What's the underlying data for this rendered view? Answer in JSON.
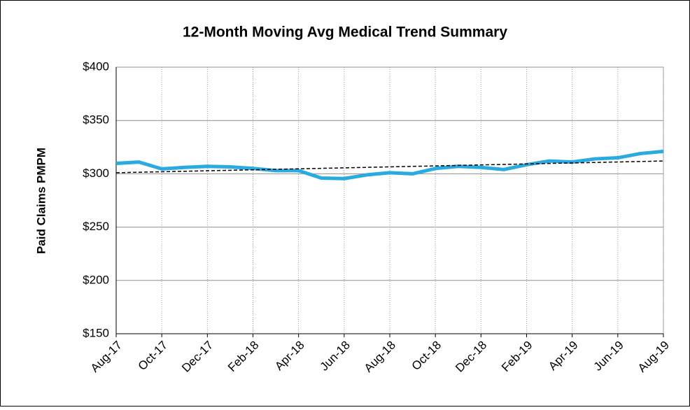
{
  "chart_data": {
    "type": "line",
    "title": "12-Month Moving Avg Medical Trend Summary",
    "y_label": "Paid Claims PMPM",
    "categories": [
      "Aug-17",
      null,
      "Oct-17",
      null,
      "Dec-17",
      null,
      "Feb-18",
      null,
      "Apr-18",
      null,
      "Jun-18",
      null,
      "Aug-18",
      null,
      "Oct-18",
      null,
      "Dec-18",
      null,
      "Feb-19",
      null,
      "Apr-19",
      null,
      "Jun-19",
      null,
      "Aug-19"
    ],
    "series": [
      {
        "color": "#29abe2",
        "values": [
          309.8,
          311,
          304.6,
          306,
          307,
          306.5,
          305,
          303,
          303,
          296,
          295.5,
          299,
          301,
          300,
          305,
          307,
          306,
          304,
          308.5,
          312,
          311,
          314,
          315,
          319,
          321
        ]
      }
    ],
    "trend": {
      "color": "#000000",
      "values": [
        301,
        312
      ]
    },
    "ylim": [
      150,
      400
    ],
    "yticks": [
      {
        "value": 150,
        "label": "$150"
      },
      {
        "value": 200,
        "label": "$200"
      },
      {
        "value": 250,
        "label": "$250"
      },
      {
        "value": 300,
        "label": "$300"
      },
      {
        "value": 350,
        "label": "$350"
      },
      {
        "value": 400,
        "label": "$400"
      }
    ],
    "grid": true
  }
}
